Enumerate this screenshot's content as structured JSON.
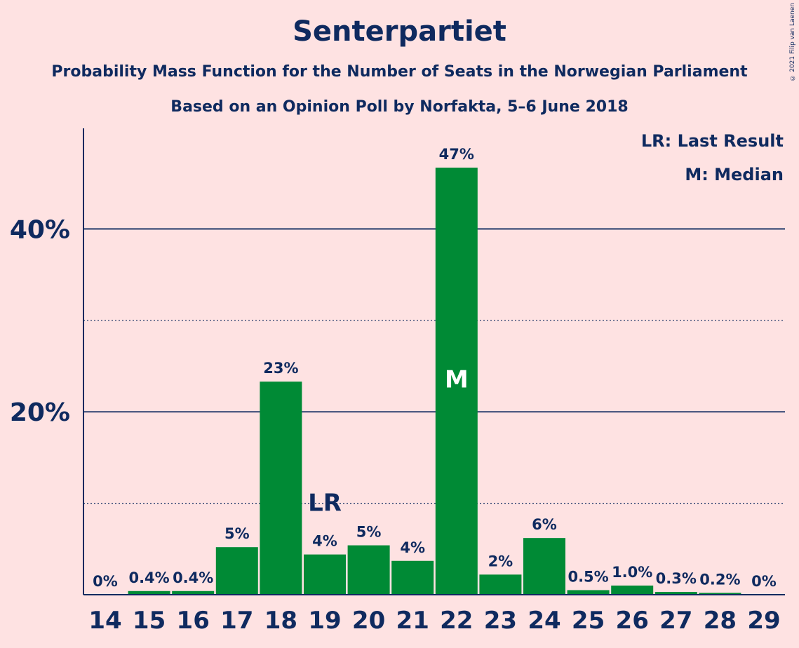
{
  "header": {
    "title": "Senterpartiet",
    "subtitle1": "Probability Mass Function for the Number of Seats in the Norwegian Parliament",
    "subtitle2": "Based on an Opinion Poll by Norfakta, 5–6 June 2018",
    "copyright": "© 2021 Filip van Laenen"
  },
  "legend": {
    "lr": "LR: Last Result",
    "m": "M: Median"
  },
  "colors": {
    "background": "#fee2e2",
    "bar": "#008a35",
    "text": "#0f2a5f"
  },
  "chart_data": {
    "type": "bar",
    "title": "Senterpartiet",
    "categories": [
      "14",
      "15",
      "16",
      "17",
      "18",
      "19",
      "20",
      "21",
      "22",
      "23",
      "24",
      "25",
      "26",
      "27",
      "28",
      "29"
    ],
    "values": [
      0,
      0.4,
      0.4,
      5.2,
      23.3,
      4.4,
      5.4,
      3.7,
      46.7,
      2.2,
      6.2,
      0.5,
      1.0,
      0.3,
      0.2,
      0
    ],
    "value_labels": [
      "0%",
      "0.4%",
      "0.4%",
      "5%",
      "23%",
      "4%",
      "5%",
      "4%",
      "47%",
      "2%",
      "6%",
      "0.5%",
      "1.0%",
      "0.3%",
      "0.2%",
      "0%"
    ],
    "ylim": [
      0,
      51
    ],
    "yticks": [
      {
        "value": 20,
        "label": "20%"
      },
      {
        "value": 40,
        "label": "40%"
      }
    ],
    "minor_gridlines": [
      10,
      30
    ],
    "last_result_seat": "19",
    "last_result_label": "LR",
    "median_seat": "22",
    "median_label": "M",
    "legend_position": "top-right"
  }
}
